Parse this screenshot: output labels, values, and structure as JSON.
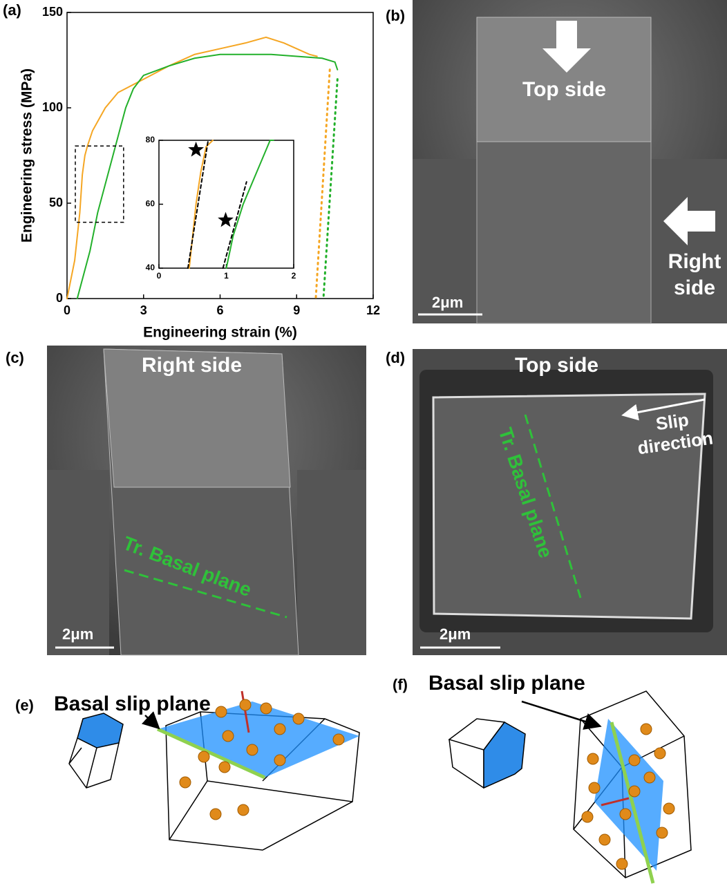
{
  "chart_data": [
    {
      "type": "line",
      "xlabel": "Engineering strain (%)",
      "ylabel": "Engineering stress (MPa)",
      "xlim": [
        0,
        12
      ],
      "ylim": [
        0,
        150
      ],
      "xticks": [
        0,
        3,
        6,
        9,
        12
      ],
      "yticks": [
        0,
        50,
        100,
        150
      ],
      "series": [
        {
          "color": "#f5a623",
          "style": "solid",
          "x": [
            0,
            0.3,
            0.5,
            0.6,
            0.7,
            0.8,
            1,
            1.5,
            2,
            3,
            4,
            5,
            6,
            7,
            7.8,
            8.5,
            9,
            9.5,
            9.8
          ],
          "values": [
            0,
            20,
            45,
            65,
            75,
            80,
            88,
            100,
            108,
            115,
            122,
            128,
            131,
            134,
            137,
            134,
            131,
            128,
            127
          ]
        },
        {
          "color": "#22b02a",
          "style": "solid",
          "x": [
            0.4,
            0.6,
            0.9,
            1.2,
            1.5,
            1.8,
            2,
            2.3,
            2.6,
            3,
            4,
            5,
            6,
            7,
            8,
            9,
            10,
            10.5,
            10.6
          ],
          "values": [
            0,
            10,
            25,
            45,
            60,
            75,
            85,
            100,
            110,
            117,
            122,
            126,
            128,
            128,
            128,
            127,
            126,
            124,
            120
          ]
        },
        {
          "color": "#f5a623",
          "style": "dotted",
          "x": [
            10.3,
            9.75
          ],
          "values": [
            120,
            0
          ]
        },
        {
          "color": "#22b02a",
          "style": "dotted",
          "x": [
            10.6,
            10.05
          ],
          "values": [
            115,
            0
          ]
        }
      ]
    },
    {
      "type": "line",
      "xlim": [
        0,
        2
      ],
      "ylim": [
        40,
        80
      ],
      "xticks": [
        0,
        1,
        2
      ],
      "yticks": [
        40,
        60,
        80
      ],
      "series": [
        {
          "color": "#f5a623",
          "style": "solid",
          "x": [
            0.45,
            0.5,
            0.55,
            0.62,
            0.7,
            0.8
          ],
          "values": [
            40,
            50,
            60,
            70,
            78,
            80
          ]
        },
        {
          "color": "#22b02a",
          "style": "solid",
          "x": [
            1,
            1.1,
            1.25,
            1.45,
            1.65,
            1.7
          ],
          "values": [
            40,
            50,
            60,
            70,
            80,
            80
          ]
        },
        {
          "color": "#000000",
          "style": "dashed",
          "x": [
            0.43,
            0.73
          ],
          "values": [
            40,
            80
          ]
        },
        {
          "color": "#000000",
          "style": "dashed",
          "x": [
            0.95,
            1.3
          ],
          "values": [
            40,
            67
          ]
        }
      ],
      "markers": {
        "x": [
          0.55,
          0.99
        ],
        "y": [
          77,
          55
        ]
      }
    }
  ],
  "panels": {
    "a": {
      "label": "(a)"
    },
    "b": {
      "label": "(b)",
      "top": "Top side",
      "right": "Right side",
      "scale": "2μm"
    },
    "c": {
      "label": "(c)",
      "side": "Right side",
      "plane": "Tr. Basal plane",
      "scale": "2μm"
    },
    "d": {
      "label": "(d)",
      "side": "Top side",
      "plane": "Tr. Basal plane",
      "direction": "Slip direction",
      "scale": "2μm"
    },
    "e": {
      "label": "(e)",
      "title": "Basal slip plane"
    },
    "f": {
      "label": "(f)",
      "title": "Basal slip plane"
    }
  }
}
